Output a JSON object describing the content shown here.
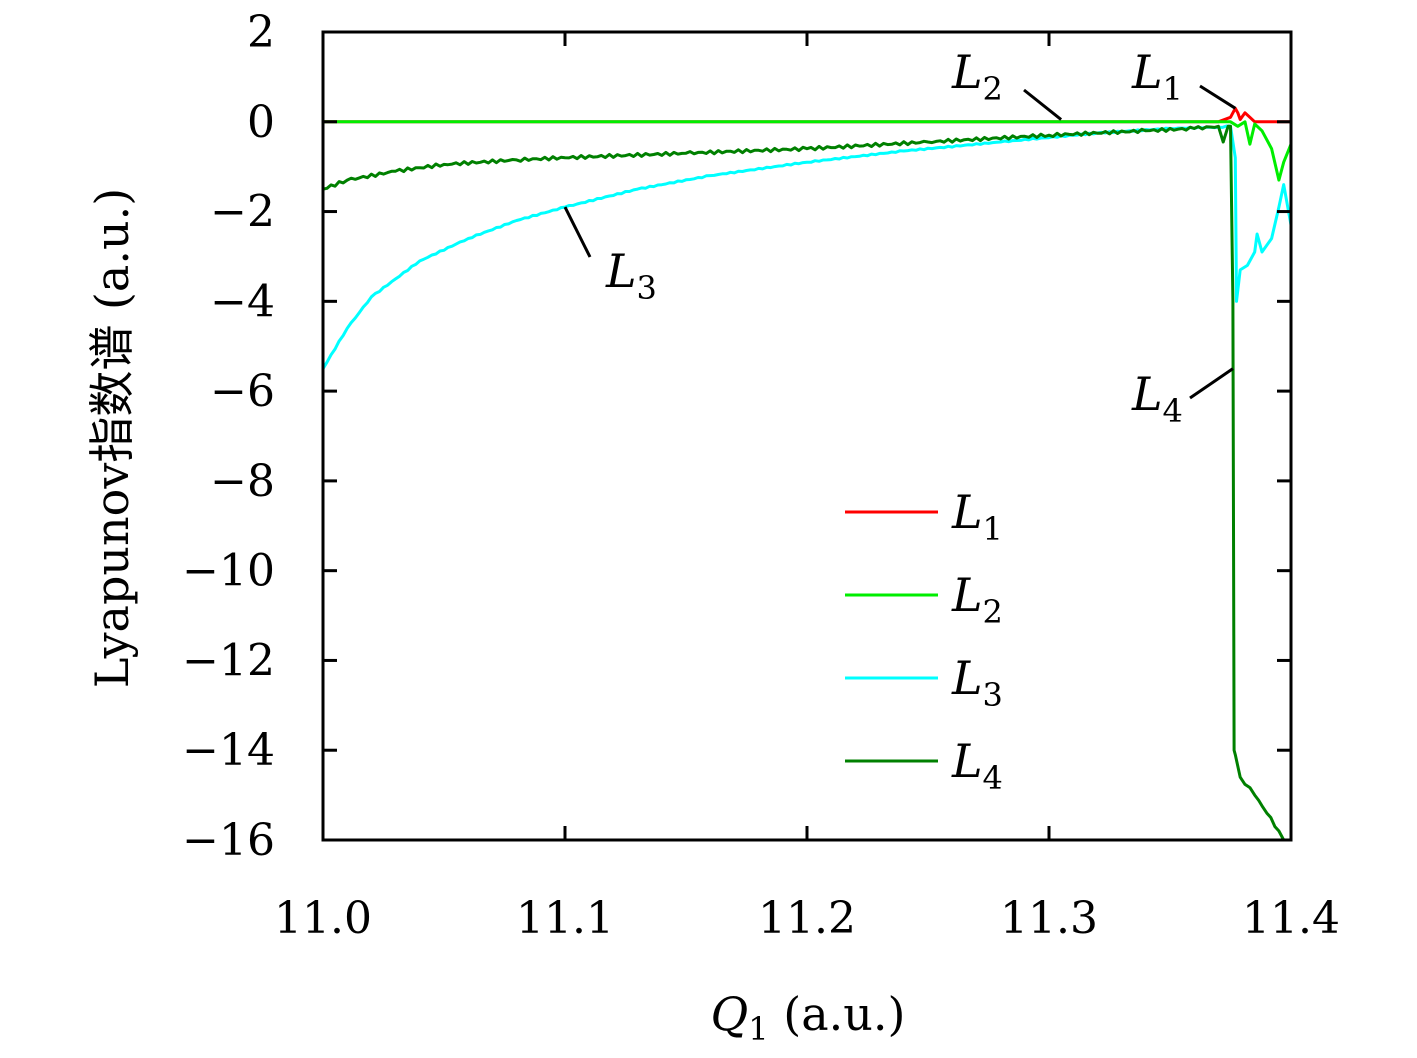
{
  "chart_data": {
    "type": "line",
    "xlabel": {
      "symbol": "Q",
      "sub": "1",
      "units": " (a.u.)"
    },
    "ylabel": "Lyapunov指数谱 (a.u.)",
    "xlim": [
      11.0,
      11.4
    ],
    "ylim": [
      -16,
      2
    ],
    "x_ticks": [
      "11.0",
      "11.1",
      "11.2",
      "11.3",
      "11.4"
    ],
    "y_ticks": [
      "2",
      "0",
      "−2",
      "−4",
      "−6",
      "−8",
      "−10",
      "−12",
      "−14",
      "−16"
    ],
    "grid": false,
    "legend_position": "bottom-center",
    "series": [
      {
        "name": "L1",
        "label": {
          "symbol": "L",
          "sub": "1"
        },
        "color": "#ff0000",
        "x": [
          11.0,
          11.1,
          11.2,
          11.3,
          11.37,
          11.375,
          11.377,
          11.378,
          11.379,
          11.381,
          11.383,
          11.385,
          11.39,
          11.4
        ],
        "y": [
          0,
          0,
          0,
          0,
          0,
          0.1,
          0.3,
          0.2,
          0.05,
          0.2,
          0.1,
          0,
          0,
          0
        ]
      },
      {
        "name": "L2",
        "label": {
          "symbol": "L",
          "sub": "2"
        },
        "color": "#00ee00",
        "x": [
          11.0,
          11.1,
          11.2,
          11.3,
          11.375,
          11.378,
          11.381,
          11.383,
          11.385,
          11.388,
          11.392,
          11.395,
          11.397,
          11.4
        ],
        "y": [
          0,
          0,
          0,
          0,
          0,
          -0.1,
          0,
          -0.5,
          -0.05,
          -0.2,
          -0.6,
          -1.3,
          -0.9,
          -0.5
        ]
      },
      {
        "name": "L3",
        "label": {
          "symbol": "L",
          "sub": "3"
        },
        "color": "#00ffff",
        "x": [
          11.0,
          11.01,
          11.02,
          11.04,
          11.06,
          11.08,
          11.1,
          11.13,
          11.16,
          11.2,
          11.24,
          11.28,
          11.32,
          11.35,
          11.37,
          11.375,
          11.377,
          11.3775,
          11.379,
          11.382,
          11.385,
          11.386,
          11.388,
          11.392,
          11.395,
          11.397,
          11.4
        ],
        "y": [
          -5.5,
          -4.6,
          -3.9,
          -3.1,
          -2.6,
          -2.2,
          -1.9,
          -1.5,
          -1.2,
          -0.9,
          -0.65,
          -0.45,
          -0.25,
          -0.15,
          -0.12,
          -0.1,
          -0.8,
          -4.0,
          -3.3,
          -3.2,
          -2.9,
          -2.5,
          -2.9,
          -2.6,
          -1.9,
          -1.4,
          -2.3
        ]
      },
      {
        "name": "L4",
        "label": {
          "symbol": "L",
          "sub": "4"
        },
        "color": "#008000",
        "x": [
          11.0,
          11.01,
          11.03,
          11.05,
          11.08,
          11.1,
          11.15,
          11.2,
          11.25,
          11.3,
          11.34,
          11.36,
          11.37,
          11.372,
          11.374,
          11.375,
          11.376,
          11.3765,
          11.377,
          11.379,
          11.385,
          11.39,
          11.395,
          11.397
        ],
        "y": [
          -1.5,
          -1.3,
          -1.1,
          -0.95,
          -0.85,
          -0.8,
          -0.7,
          -0.6,
          -0.45,
          -0.3,
          -0.2,
          -0.15,
          -0.1,
          -0.45,
          -0.1,
          -0.1,
          -4.0,
          -14.0,
          -14.1,
          -14.6,
          -15.0,
          -15.4,
          -15.8,
          -16.0
        ]
      }
    ],
    "annotations": [
      {
        "label": {
          "symbol": "L",
          "sub": "1"
        },
        "target": [
          11.377,
          0.3
        ]
      },
      {
        "label": {
          "symbol": "L",
          "sub": "2"
        },
        "target": [
          11.305,
          0.05
        ]
      },
      {
        "label": {
          "symbol": "L",
          "sub": "3"
        },
        "target": [
          11.1,
          -1.9
        ]
      },
      {
        "label": {
          "symbol": "L",
          "sub": "4"
        },
        "target": [
          11.376,
          -5.5
        ]
      }
    ]
  }
}
